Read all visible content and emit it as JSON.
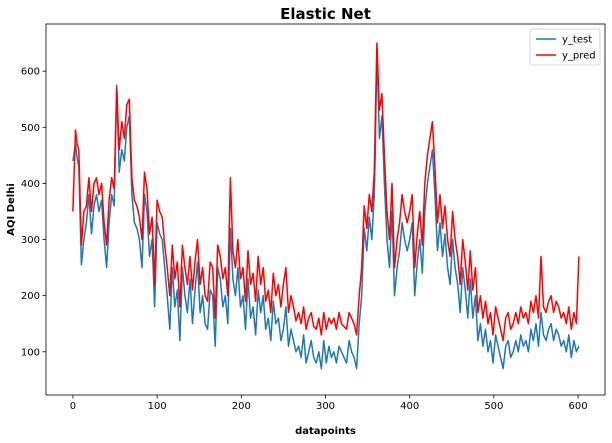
{
  "chart_data": {
    "type": "line",
    "title": "Elastic Net",
    "xlabel": "datapoints",
    "ylabel": "AQI Delhi",
    "xlim": [
      -32,
      632
    ],
    "ylim": [
      23,
      684
    ],
    "xticks": [
      0,
      100,
      200,
      300,
      400,
      500,
      600
    ],
    "yticks": [
      100,
      200,
      300,
      400,
      500,
      600
    ],
    "legend_position": "top-right",
    "grid": false,
    "series": [
      {
        "name": "y_test",
        "color": "#1f77b4",
        "x": [
          0,
          3,
          5,
          7,
          10,
          13,
          16,
          19,
          22,
          25,
          28,
          31,
          34,
          37,
          40,
          43,
          46,
          49,
          52,
          55,
          58,
          61,
          64,
          67,
          70,
          73,
          76,
          79,
          82,
          85,
          88,
          91,
          94,
          97,
          100,
          103,
          106,
          109,
          112,
          115,
          118,
          121,
          124,
          127,
          130,
          133,
          136,
          139,
          142,
          145,
          148,
          151,
          154,
          157,
          160,
          163,
          166,
          169,
          172,
          175,
          178,
          181,
          184,
          187,
          190,
          193,
          196,
          199,
          202,
          205,
          208,
          211,
          214,
          217,
          220,
          223,
          226,
          229,
          232,
          235,
          238,
          241,
          244,
          247,
          250,
          253,
          256,
          259,
          262,
          265,
          268,
          271,
          274,
          277,
          280,
          283,
          286,
          289,
          292,
          295,
          298,
          301,
          304,
          307,
          310,
          313,
          316,
          319,
          322,
          325,
          328,
          331,
          334,
          337,
          340,
          343,
          346,
          349,
          352,
          355,
          358,
          359,
          361,
          364,
          367,
          370,
          373,
          376,
          379,
          382,
          385,
          388,
          391,
          394,
          397,
          400,
          403,
          406,
          409,
          412,
          415,
          418,
          421,
          424,
          427,
          430,
          433,
          436,
          439,
          442,
          445,
          448,
          451,
          454,
          457,
          460,
          463,
          466,
          469,
          472,
          475,
          478,
          481,
          484,
          487,
          490,
          493,
          496,
          499,
          502,
          505,
          508,
          511,
          514,
          517,
          520,
          523,
          526,
          529,
          532,
          535,
          538,
          541,
          544,
          547,
          550,
          553,
          556,
          559,
          562,
          565,
          568,
          571,
          574,
          577,
          580,
          583,
          586,
          589,
          592,
          595,
          598,
          601
        ],
        "y": [
          440,
          470,
          445,
          430,
          255,
          300,
          330,
          380,
          310,
          360,
          380,
          350,
          370,
          300,
          250,
          330,
          380,
          360,
          575,
          420,
          460,
          440,
          500,
          520,
          380,
          330,
          320,
          300,
          250,
          380,
          350,
          270,
          300,
          180,
          330,
          310,
          300,
          250,
          200,
          140,
          250,
          180,
          210,
          120,
          250,
          200,
          170,
          230,
          150,
          210,
          260,
          170,
          200,
          150,
          140,
          210,
          200,
          110,
          250,
          230,
          180,
          200,
          150,
          320,
          230,
          200,
          250,
          180,
          200,
          140,
          230,
          160,
          180,
          130,
          210,
          170,
          200,
          140,
          160,
          120,
          190,
          150,
          160,
          120,
          140,
          180,
          110,
          140,
          120,
          100,
          110,
          90,
          130,
          80,
          100,
          120,
          90,
          80,
          100,
          70,
          120,
          80,
          110,
          90,
          100,
          80,
          110,
          100,
          90,
          80,
          120,
          100,
          90,
          70,
          150,
          200,
          320,
          280,
          340,
          300,
          380,
          450,
          640,
          480,
          520,
          400,
          300,
          250,
          350,
          200,
          250,
          280,
          330,
          300,
          280,
          300,
          330,
          200,
          260,
          300,
          240,
          350,
          400,
          430,
          460,
          380,
          280,
          330,
          270,
          310,
          250,
          220,
          300,
          250,
          220,
          170,
          250,
          210,
          160,
          230,
          160,
          200,
          120,
          150,
          110,
          140,
          100,
          120,
          80,
          130,
          110,
          90,
          70,
          110,
          120,
          90,
          100,
          120,
          100,
          130,
          110,
          120,
          100,
          140,
          120,
          150,
          110,
          170,
          130,
          120,
          140,
          150,
          120,
          140,
          130,
          110,
          120,
          100,
          130,
          90,
          120,
          100,
          110
        ]
      },
      {
        "name": "y_pred",
        "color": "#ff0000",
        "x": [
          0,
          3,
          5,
          7,
          10,
          13,
          16,
          19,
          22,
          25,
          28,
          31,
          34,
          37,
          40,
          43,
          46,
          49,
          52,
          55,
          58,
          61,
          64,
          67,
          70,
          73,
          76,
          79,
          82,
          85,
          88,
          91,
          94,
          97,
          100,
          103,
          106,
          109,
          112,
          115,
          118,
          121,
          124,
          127,
          130,
          133,
          136,
          139,
          142,
          145,
          148,
          151,
          154,
          157,
          160,
          163,
          166,
          169,
          172,
          175,
          178,
          181,
          184,
          187,
          190,
          193,
          196,
          199,
          202,
          205,
          208,
          211,
          214,
          217,
          220,
          223,
          226,
          229,
          232,
          235,
          238,
          241,
          244,
          247,
          250,
          253,
          256,
          259,
          262,
          265,
          268,
          271,
          274,
          277,
          280,
          283,
          286,
          289,
          292,
          295,
          298,
          301,
          304,
          307,
          310,
          313,
          316,
          319,
          322,
          325,
          328,
          331,
          334,
          337,
          340,
          343,
          346,
          349,
          352,
          355,
          358,
          359,
          361,
          364,
          367,
          370,
          373,
          376,
          379,
          382,
          385,
          388,
          391,
          394,
          397,
          400,
          403,
          406,
          409,
          412,
          415,
          418,
          421,
          424,
          427,
          430,
          433,
          436,
          439,
          442,
          445,
          448,
          451,
          454,
          457,
          460,
          463,
          466,
          469,
          472,
          475,
          478,
          481,
          484,
          487,
          490,
          493,
          496,
          499,
          502,
          505,
          508,
          511,
          514,
          517,
          520,
          523,
          526,
          529,
          532,
          535,
          538,
          541,
          544,
          547,
          550,
          553,
          556,
          559,
          562,
          565,
          568,
          571,
          574,
          577,
          580,
          583,
          586,
          589,
          592,
          595,
          598,
          601
        ],
        "y": [
          350,
          495,
          470,
          460,
          290,
          350,
          360,
          410,
          350,
          400,
          410,
          380,
          400,
          330,
          290,
          370,
          410,
          390,
          570,
          460,
          510,
          480,
          540,
          550,
          410,
          370,
          360,
          340,
          300,
          420,
          390,
          310,
          340,
          220,
          370,
          350,
          340,
          290,
          250,
          200,
          290,
          230,
          260,
          180,
          290,
          250,
          220,
          270,
          210,
          260,
          300,
          220,
          250,
          200,
          190,
          260,
          250,
          160,
          290,
          270,
          230,
          250,
          200,
          410,
          280,
          250,
          300,
          230,
          250,
          190,
          280,
          220,
          240,
          190,
          270,
          220,
          250,
          190,
          210,
          170,
          240,
          200,
          220,
          180,
          220,
          250,
          170,
          200,
          180,
          155,
          170,
          150,
          180,
          140,
          160,
          170,
          145,
          140,
          160,
          130,
          170,
          140,
          160,
          150,
          160,
          140,
          170,
          150,
          145,
          140,
          170,
          160,
          150,
          130,
          200,
          250,
          360,
          320,
          380,
          350,
          420,
          500,
          650,
          530,
          560,
          450,
          350,
          300,
          400,
          250,
          300,
          330,
          380,
          350,
          330,
          350,
          380,
          250,
          310,
          350,
          290,
          400,
          450,
          480,
          510,
          430,
          330,
          380,
          320,
          360,
          300,
          270,
          350,
          300,
          270,
          220,
          300,
          260,
          210,
          280,
          210,
          250,
          170,
          200,
          160,
          190,
          150,
          170,
          130,
          180,
          160,
          140,
          120,
          160,
          170,
          140,
          150,
          170,
          150,
          180,
          160,
          170,
          150,
          190,
          170,
          200,
          160,
          270,
          180,
          170,
          190,
          200,
          170,
          190,
          180,
          160,
          170,
          150,
          180,
          140,
          170,
          150,
          270
        ]
      }
    ]
  }
}
